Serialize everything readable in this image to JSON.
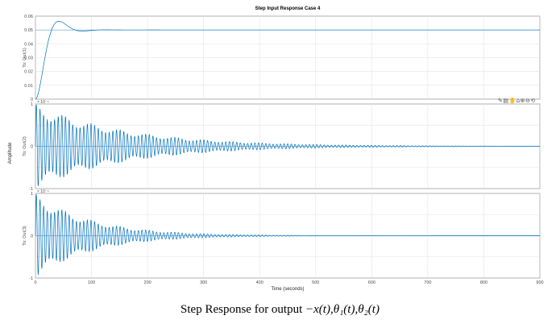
{
  "caption": {
    "prefix": "Step Response for output ",
    "math": "−x(t),θ₁(t),θ₂(t)"
  },
  "toolbar": {
    "icons": [
      "brush-icon",
      "export-icon",
      "pan-icon",
      "home-icon",
      "zoom-in-icon",
      "zoom-out-icon",
      "restore-view-icon"
    ]
  },
  "chart_data": {
    "type": "line",
    "title": "Step Input Response Case 4",
    "xlabel": "Time (seconds)",
    "ylabel": "Amplitude",
    "xlim": [
      0,
      900
    ],
    "x_ticks": [
      "0",
      "100",
      "200",
      "300",
      "400",
      "500",
      "600",
      "700",
      "800",
      "900"
    ],
    "grid": true,
    "line_color": "#0072BD",
    "subplots": [
      {
        "ylabel": "To: Out(1)",
        "ylim": [
          0,
          0.06
        ],
        "y_ticks": [
          "0",
          "0.01",
          "0.02",
          "0.03",
          "0.04",
          "0.05",
          "0.06"
        ],
        "exponent": "",
        "response": {
          "kind": "step",
          "final_value": 0.05,
          "peak_value": 0.052,
          "peak_time": 35,
          "settle_time": 80
        }
      },
      {
        "ylabel": "To: Out(2)",
        "ylim": [
          -1,
          1
        ],
        "y_ticks": [
          "-1",
          "0",
          "1"
        ],
        "exponent": "× 10⁻⁴",
        "response": {
          "kind": "damped_oscillation",
          "initial_amplitude": 1.0,
          "decay_time": 160,
          "period": 6.5,
          "final_value": 0
        }
      },
      {
        "ylabel": "To: Out(3)",
        "ylim": [
          -1,
          1
        ],
        "y_ticks": [
          "-1",
          "0",
          "1"
        ],
        "exponent": "× 10⁻⁴",
        "response": {
          "kind": "damped_oscillation",
          "initial_amplitude": 1.0,
          "decay_time": 100,
          "period": 6.5,
          "final_value": 0
        }
      }
    ]
  }
}
